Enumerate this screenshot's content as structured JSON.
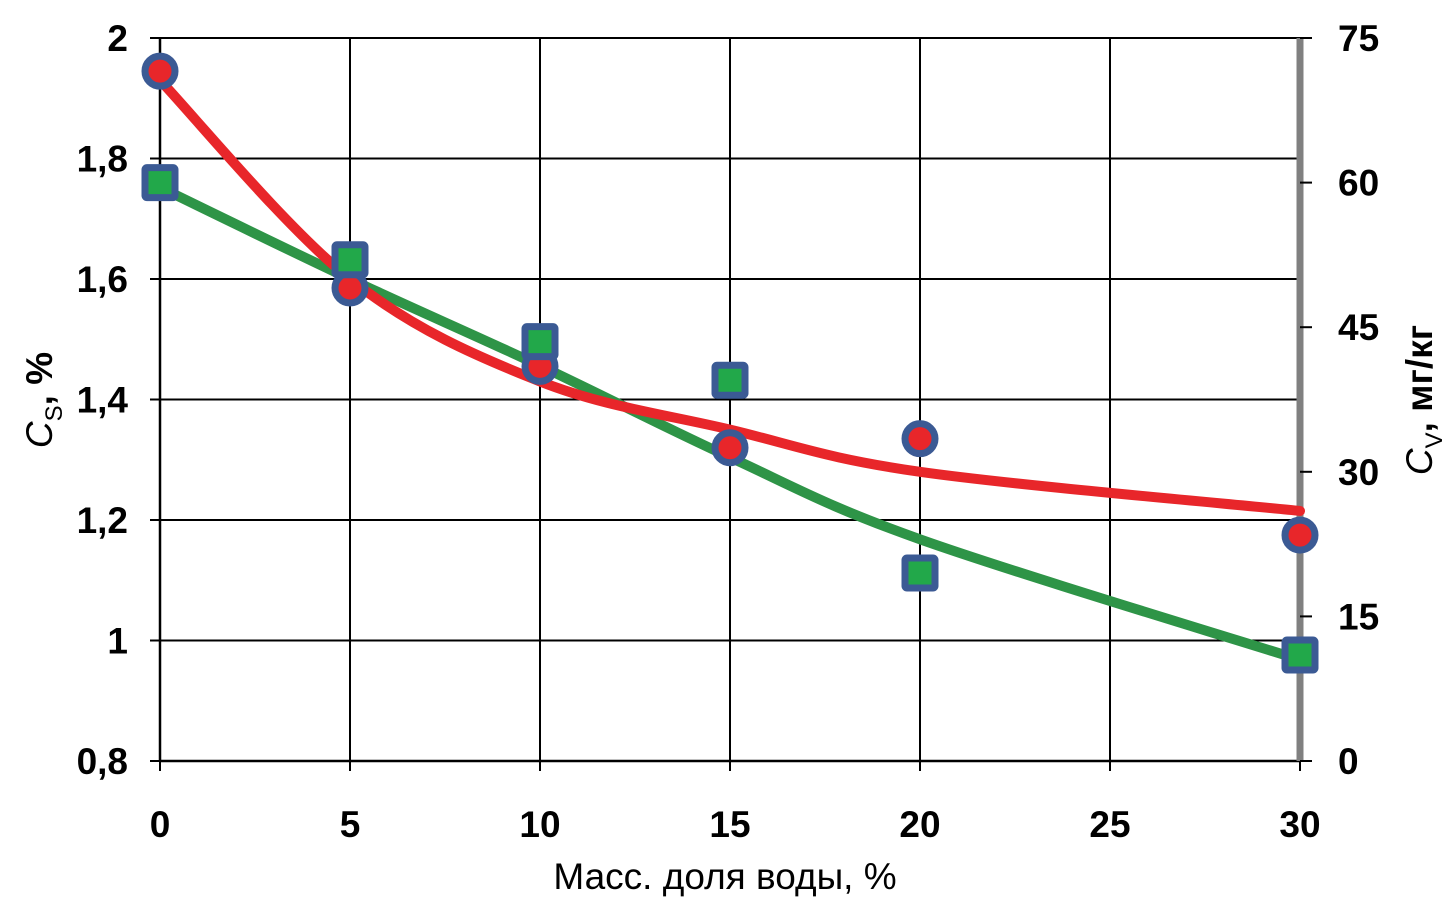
{
  "chart_data": {
    "type": "scatter",
    "xlabel": "Масс. доля воды, %",
    "ylabel_left": {
      "symbol": "C",
      "subscript": "S",
      "suffix": ", %"
    },
    "ylabel_right": {
      "symbol": "C",
      "subscript": "V",
      "suffix": ", мг/кг"
    },
    "xlim": [
      0,
      30
    ],
    "ylim_left": [
      0.8,
      2.0
    ],
    "ylim_right": [
      0,
      75
    ],
    "x_ticks": [
      "0",
      "5",
      "10",
      "15",
      "20",
      "25",
      "30"
    ],
    "y_left_ticks": [
      "0,8",
      "1",
      "1,2",
      "1,4",
      "1,6",
      "1,8",
      "2"
    ],
    "y_right_ticks": [
      "0",
      "15",
      "30",
      "45",
      "60",
      "75"
    ],
    "grid": true,
    "series": [
      {
        "axis": "left",
        "marker": "circle",
        "color": "#e8262a",
        "marker_color": "#e8262a",
        "marker_edge": "#3b5a94",
        "x": [
          0,
          5,
          10,
          15,
          20,
          30
        ],
        "y": [
          1.945,
          1.585,
          1.455,
          1.32,
          1.335,
          1.175
        ],
        "trend_y": [
          1.93,
          1.6,
          1.43,
          1.35,
          1.28,
          1.215
        ]
      },
      {
        "axis": "right",
        "marker": "square",
        "color": "#2e9447",
        "marker_color": "#22a84a",
        "marker_edge": "#3b5a94",
        "x": [
          0,
          5,
          10,
          15,
          20,
          30
        ],
        "y": [
          60,
          52,
          43.5,
          39.5,
          19.5,
          11
        ],
        "trend_y": [
          59.5,
          50,
          41,
          31.5,
          23,
          10.5
        ]
      }
    ]
  }
}
